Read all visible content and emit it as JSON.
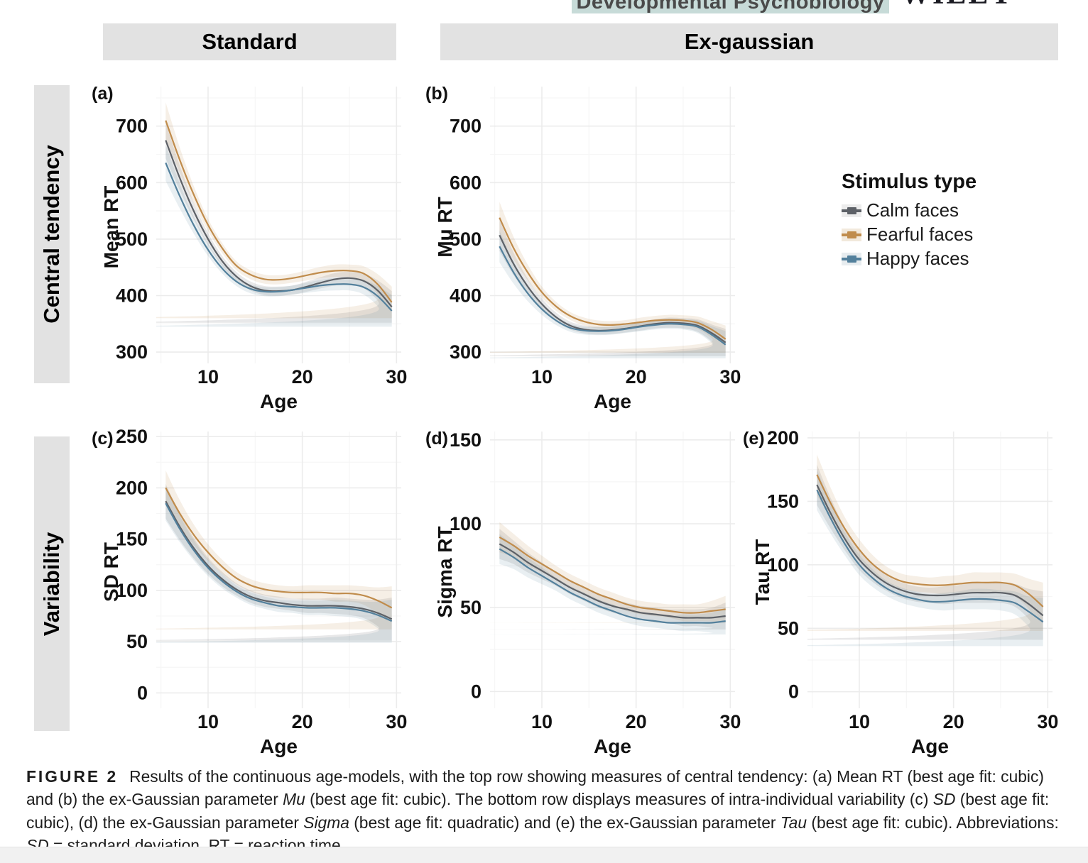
{
  "header": {
    "journal_banner": "Developmental Psychobiology",
    "publisher": "WILEY",
    "banner_bg": "#c7dbd8"
  },
  "column_headers": [
    {
      "label": "Standard"
    },
    {
      "label": "Ex-gaussian"
    }
  ],
  "row_headers": [
    {
      "label": "Central tendency"
    },
    {
      "label": "Variability"
    }
  ],
  "legend": {
    "title": "Stimulus type",
    "entries": [
      {
        "label": "Calm faces",
        "color": "#5d6167",
        "key_bg": "#ececec"
      },
      {
        "label": "Fearful faces",
        "color": "#c08c4c",
        "key_bg": "#f2e9dc"
      },
      {
        "label": "Happy faces",
        "color": "#53809c",
        "key_bg": "#e7ecef"
      }
    ]
  },
  "chart_data": [
    {
      "id": "a",
      "type": "line",
      "panel_label": "(a)",
      "xlabel": "Age",
      "ylabel": "Mean RT",
      "x_ticks": [
        10,
        20,
        30
      ],
      "y_ticks": [
        300,
        400,
        500,
        600,
        700
      ],
      "xlim": [
        4.5,
        30.5
      ],
      "ylim": [
        280,
        770
      ],
      "grid": "light",
      "x": [
        5.5,
        7,
        8.5,
        10,
        11.5,
        13,
        14.5,
        16,
        17.5,
        19,
        20.5,
        22,
        23.5,
        25,
        26.5,
        28,
        29.5
      ],
      "ci": [
        32,
        22,
        15,
        11,
        9,
        8,
        8,
        8,
        8,
        8,
        9,
        10,
        11,
        11,
        13,
        18,
        28
      ],
      "series": [
        {
          "name": "Calm faces",
          "color": "#5d6167",
          "band": "rgba(110,112,116,0.16)",
          "values": [
            675,
            608,
            549,
            500,
            461,
            434,
            417,
            409,
            408,
            410,
            416,
            423,
            429,
            431,
            426,
            409,
            380
          ]
        },
        {
          "name": "Fearful faces",
          "color": "#c08c4c",
          "band": "rgba(192,140,76,0.14)",
          "values": [
            710,
            640,
            578,
            525,
            484,
            453,
            437,
            429,
            428,
            431,
            436,
            441,
            444,
            444,
            439,
            420,
            388
          ]
        },
        {
          "name": "Happy faces",
          "color": "#53809c",
          "band": "rgba(83,128,156,0.13)",
          "values": [
            635,
            576,
            524,
            481,
            448,
            425,
            412,
            407,
            407,
            410,
            414,
            418,
            420,
            420,
            415,
            399,
            373
          ]
        }
      ]
    },
    {
      "id": "b",
      "type": "line",
      "panel_label": "(b)",
      "xlabel": "Age",
      "ylabel": "Mu RT",
      "x_ticks": [
        10,
        20,
        30
      ],
      "y_ticks": [
        300,
        400,
        500,
        600,
        700
      ],
      "xlim": [
        4.5,
        30.5
      ],
      "ylim": [
        280,
        770
      ],
      "grid": "light",
      "x": [
        5.5,
        7,
        8.5,
        10,
        11.5,
        13,
        14.5,
        16,
        17.5,
        19,
        20.5,
        22,
        23.5,
        25,
        26.5,
        28,
        29.5
      ],
      "ci": [
        28,
        20,
        14,
        10,
        8,
        7,
        7,
        7,
        7,
        7,
        8,
        8,
        9,
        9,
        11,
        15,
        24
      ],
      "series": [
        {
          "name": "Calm faces",
          "color": "#5d6167",
          "band": "rgba(110,112,116,0.16)",
          "values": [
            507,
            456,
            416,
            385,
            362,
            347,
            340,
            338,
            339,
            342,
            346,
            350,
            352,
            351,
            347,
            334,
            317
          ]
        },
        {
          "name": "Fearful faces",
          "color": "#c08c4c",
          "band": "rgba(192,140,76,0.14)",
          "values": [
            538,
            484,
            441,
            406,
            381,
            364,
            354,
            349,
            348,
            350,
            353,
            356,
            357,
            356,
            352,
            340,
            323
          ]
        },
        {
          "name": "Happy faces",
          "color": "#53809c",
          "band": "rgba(83,128,156,0.13)",
          "values": [
            487,
            441,
            404,
            376,
            356,
            343,
            338,
            337,
            338,
            341,
            345,
            348,
            350,
            349,
            345,
            331,
            313
          ]
        }
      ]
    },
    {
      "id": "c",
      "type": "line",
      "panel_label": "(c)",
      "xlabel": "Age",
      "ylabel": "SD RT",
      "x_ticks": [
        10,
        20,
        30
      ],
      "y_ticks": [
        0,
        50,
        100,
        150,
        200,
        250
      ],
      "xlim": [
        4.5,
        30.5
      ],
      "ylim": [
        -15,
        255
      ],
      "grid": "light",
      "x": [
        5.5,
        7,
        8.5,
        10,
        11.5,
        13,
        14.5,
        16,
        17.5,
        19,
        20.5,
        22,
        23.5,
        25,
        26.5,
        28,
        29.5
      ],
      "ci": [
        17,
        13,
        10,
        8,
        7,
        6,
        6,
        6,
        6,
        6,
        7,
        7,
        8,
        8,
        9,
        13,
        21
      ],
      "series": [
        {
          "name": "Calm faces",
          "color": "#5d6167",
          "band": "rgba(110,112,116,0.16)",
          "values": [
            187,
            162,
            141,
            124,
            111,
            101,
            94,
            90,
            88,
            86,
            85,
            85,
            85,
            84,
            82,
            78,
            72
          ]
        },
        {
          "name": "Fearful faces",
          "color": "#c08c4c",
          "band": "rgba(192,140,76,0.14)",
          "values": [
            200,
            175,
            154,
            137,
            123,
            112,
            105,
            101,
            99,
            98,
            98,
            98,
            97,
            97,
            95,
            90,
            83
          ]
        },
        {
          "name": "Happy faces",
          "color": "#53809c",
          "band": "rgba(83,128,156,0.13)",
          "values": [
            185,
            160,
            139,
            122,
            109,
            99,
            92,
            88,
            85,
            84,
            83,
            83,
            83,
            82,
            80,
            76,
            70
          ]
        }
      ]
    },
    {
      "id": "d",
      "type": "line",
      "panel_label": "(d)",
      "xlabel": "Age",
      "ylabel": "Sigma RT",
      "x_ticks": [
        10,
        20,
        30
      ],
      "y_ticks": [
        0,
        50,
        100,
        150
      ],
      "xlim": [
        4.5,
        30.5
      ],
      "ylim": [
        -10,
        155
      ],
      "grid": "light",
      "x": [
        5.5,
        7,
        8.5,
        10,
        11.5,
        13,
        14.5,
        16,
        17.5,
        19,
        20.5,
        22,
        23.5,
        25,
        26.5,
        28,
        29.5
      ],
      "ci": [
        9,
        7,
        6,
        5,
        4,
        4,
        4,
        4,
        4,
        4,
        4,
        4,
        4,
        5,
        5,
        6,
        8
      ],
      "series": [
        {
          "name": "Calm faces",
          "color": "#5d6167",
          "band": "rgba(110,112,116,0.16)",
          "values": [
            88,
            83,
            77,
            72,
            67,
            62,
            58,
            54,
            51,
            49,
            47,
            46,
            45,
            44,
            44,
            44,
            45
          ]
        },
        {
          "name": "Fearful faces",
          "color": "#c08c4c",
          "band": "rgba(192,140,76,0.14)",
          "values": [
            92,
            87,
            81,
            76,
            71,
            66,
            62,
            58,
            55,
            52,
            50,
            49,
            48,
            47,
            47,
            48,
            49
          ]
        },
        {
          "name": "Happy faces",
          "color": "#53809c",
          "band": "rgba(83,128,156,0.13)",
          "values": [
            85,
            80,
            74,
            69,
            64,
            59,
            55,
            51,
            48,
            45,
            43,
            42,
            41,
            41,
            41,
            41,
            42
          ]
        }
      ]
    },
    {
      "id": "e",
      "type": "line",
      "panel_label": "(e)",
      "xlabel": "Age",
      "ylabel": "Tau RT",
      "x_ticks": [
        10,
        20,
        30
      ],
      "y_ticks": [
        0,
        50,
        100,
        150,
        200
      ],
      "xlim": [
        4.5,
        30.5
      ],
      "ylim": [
        -13,
        205
      ],
      "grid": "light",
      "x": [
        5.5,
        7,
        8.5,
        10,
        11.5,
        13,
        14.5,
        16,
        17.5,
        19,
        20.5,
        22,
        23.5,
        25,
        26.5,
        28,
        29.5
      ],
      "ci": [
        16,
        12,
        9,
        8,
        7,
        6,
        6,
        6,
        6,
        7,
        7,
        8,
        8,
        8,
        9,
        12,
        19
      ],
      "series": [
        {
          "name": "Calm faces",
          "color": "#5d6167",
          "band": "rgba(110,112,116,0.16)",
          "values": [
            163,
            140,
            120,
            104,
            93,
            85,
            80,
            77,
            76,
            76,
            77,
            78,
            78,
            78,
            76,
            69,
            60
          ]
        },
        {
          "name": "Fearful faces",
          "color": "#c08c4c",
          "band": "rgba(192,140,76,0.14)",
          "values": [
            171,
            148,
            128,
            112,
            100,
            92,
            87,
            85,
            84,
            84,
            85,
            86,
            86,
            86,
            84,
            77,
            67
          ]
        },
        {
          "name": "Happy faces",
          "color": "#53809c",
          "band": "rgba(83,128,156,0.13)",
          "values": [
            159,
            136,
            116,
            100,
            89,
            81,
            76,
            73,
            71,
            71,
            72,
            73,
            73,
            72,
            70,
            63,
            55
          ]
        }
      ]
    }
  ],
  "caption": {
    "fig_label": "FIGURE 2",
    "s1": "Results of the continuous age-models, with the top row showing measures of central tendency: (a) Mean RT (best age fit: cubic) and (b) the ex-Gaussian parameter ",
    "i1": "Mu",
    "s2": " (best age fit: cubic). The bottom row displays measures of intra-individual variability (c) ",
    "i2": "SD",
    "s3": " (best age fit: cubic), (d) the ex-Gaussian parameter ",
    "i3": "Sigma",
    "s4": " (best age fit: quadratic) and (e) the ex-Gaussian parameter ",
    "i4": "Tau",
    "s5": " (best age fit: cubic). Abbreviations: ",
    "i5": "SD",
    "s6": " = standard deviation, RT = reaction time"
  }
}
